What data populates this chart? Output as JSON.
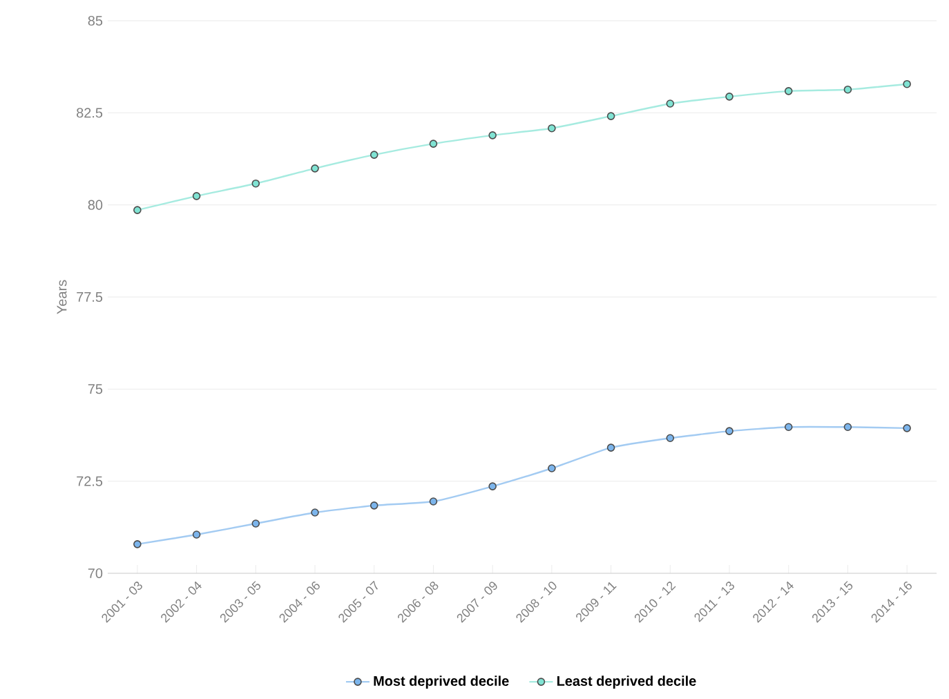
{
  "chart_data": {
    "type": "line",
    "ylabel": "Years",
    "categories": [
      "2001 - 03",
      "2002 - 04",
      "2003 - 05",
      "2004 - 06",
      "2005 - 07",
      "2006 - 08",
      "2007 - 09",
      "2008 - 10",
      "2009 - 11",
      "2010 - 12",
      "2011 - 13",
      "2012 - 14",
      "2013 - 15",
      "2014 - 16"
    ],
    "series": [
      {
        "name": "Most deprived decile",
        "color": "#7cb5ec",
        "values": [
          70.79,
          71.05,
          71.35,
          71.65,
          71.84,
          71.95,
          72.36,
          72.85,
          73.41,
          73.67,
          73.86,
          73.97,
          73.97,
          73.94
        ]
      },
      {
        "name": "Least deprived decile",
        "color": "#80e3d3",
        "values": [
          79.86,
          80.24,
          80.58,
          80.99,
          81.36,
          81.66,
          81.89,
          82.08,
          82.41,
          82.75,
          82.94,
          83.09,
          83.13,
          83.28
        ]
      }
    ],
    "ylim": [
      70,
      85
    ],
    "yticks": [
      70,
      72.5,
      75,
      77.5,
      80,
      82.5,
      85
    ],
    "grid": "y",
    "legend": "bottom",
    "marker": "circle",
    "line_style": "solid"
  }
}
